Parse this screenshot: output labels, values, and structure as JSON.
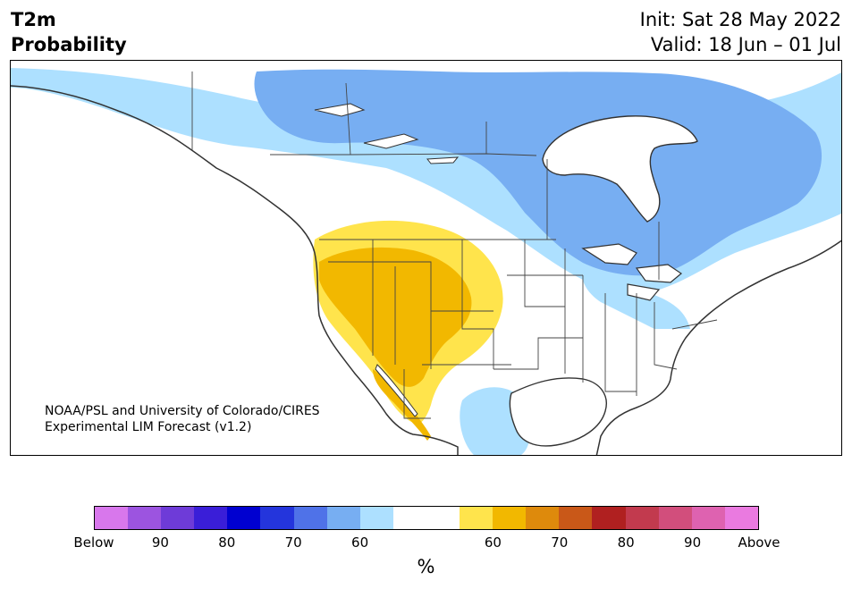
{
  "header": {
    "variable": "T2m",
    "subtitle": "Probability",
    "init": "Init: Sat 28 May 2022",
    "valid": "Valid: 18 Jun – 01 Jul"
  },
  "map": {
    "credit_line1": "NOAA/PSL and University of Colorado/CIRES",
    "credit_line2": "Experimental LIM Forecast (v1.2)",
    "region": "North America",
    "features": [
      "coastline",
      "country-borders",
      "state-province-borders",
      "probability-shading"
    ]
  },
  "colorbar": {
    "unit": "%",
    "colors": [
      "#d877ec",
      "#9c54e0",
      "#6e3bd8",
      "#3a1ed8",
      "#0000d0",
      "#2435dc",
      "#4f72e8",
      "#77aef2",
      "#ade0ff",
      "#ffffff",
      "#ffffff",
      "#ffe44c",
      "#f2b800",
      "#de8a0c",
      "#c95818",
      "#b02020",
      "#c23a4e",
      "#d24e7c",
      "#de62b0",
      "#ea7ae0"
    ],
    "tick_labels": [
      "Below",
      "90",
      "80",
      "70",
      "60",
      "60",
      "70",
      "80",
      "90",
      "Above"
    ]
  },
  "legend_colors": {
    "light_blue": "#ade0ff",
    "medium_blue": "#77aef2",
    "light_yellow": "#ffe44c",
    "gold": "#f2b800"
  }
}
